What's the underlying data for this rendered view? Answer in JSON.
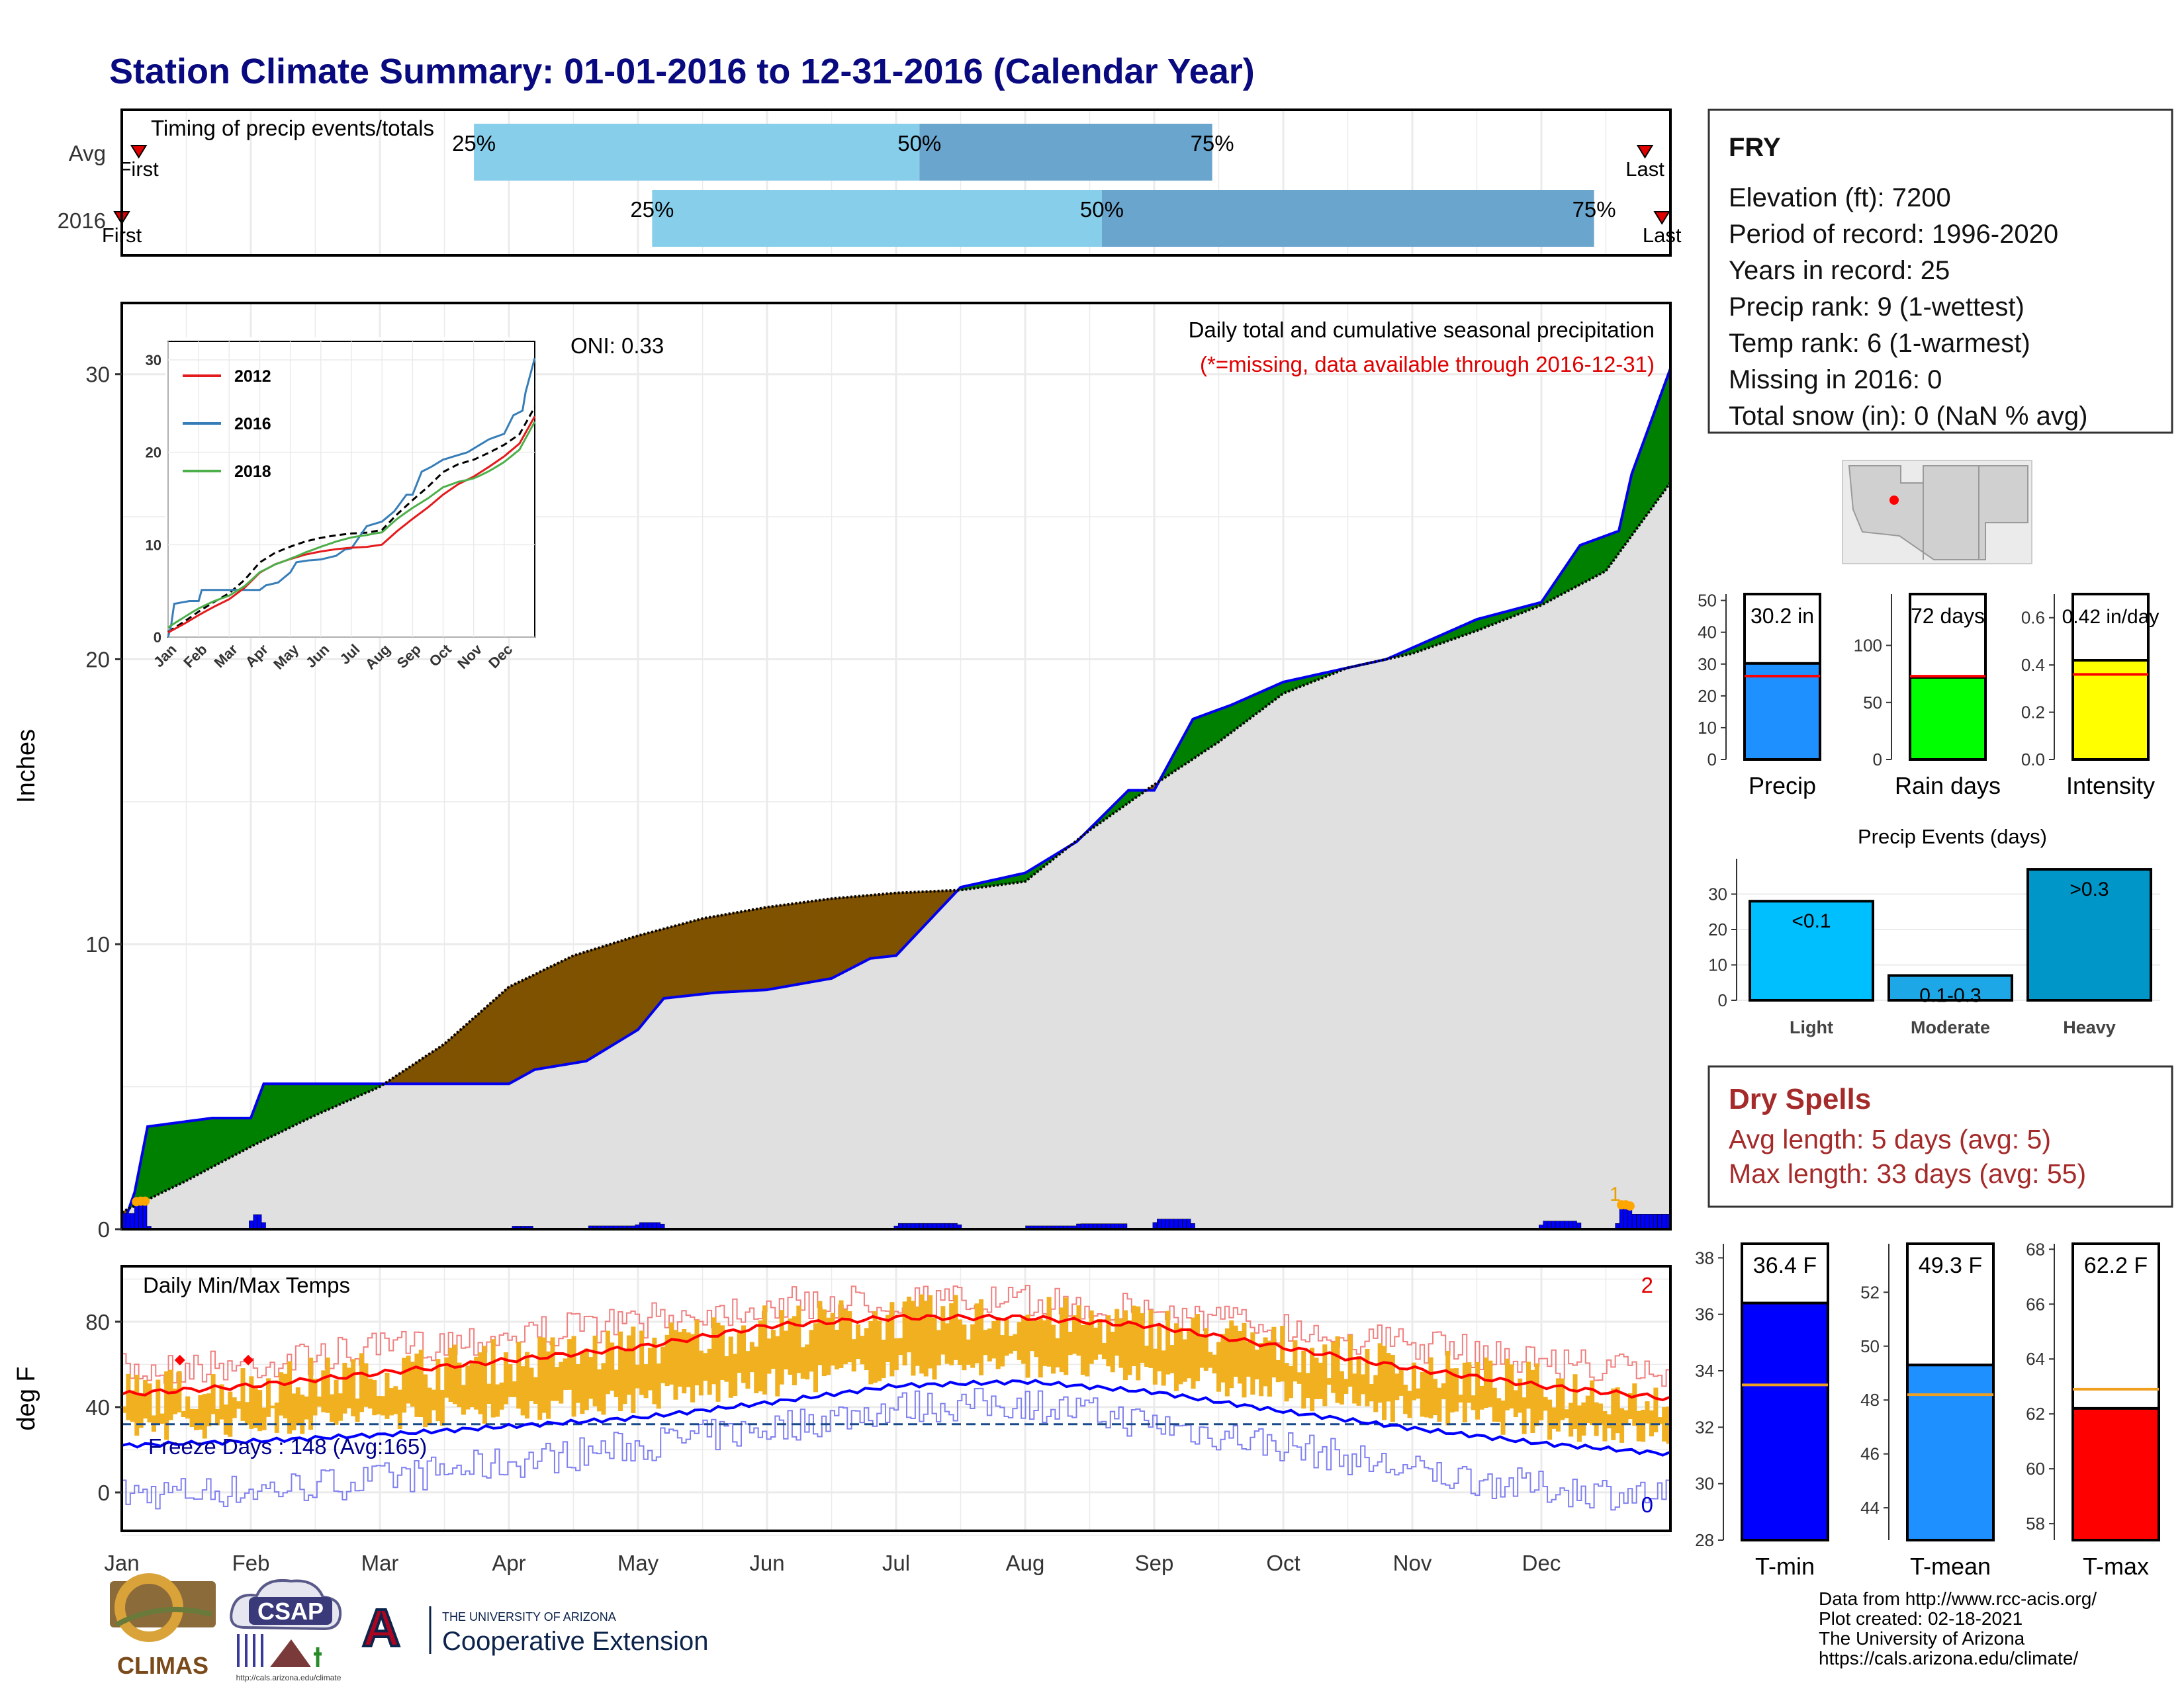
{
  "title": "Station Climate Summary: 01-01-2016 to 12-31-2016 (Calendar Year)",
  "timing_panel": {
    "label": "Timing of precip events/totals",
    "rows": [
      {
        "name": "Avg",
        "first_label": "First",
        "last_label": "Last",
        "first_day": 5,
        "p25_day": 84,
        "p50_day": 189,
        "p75_day": 258,
        "last_day": 360
      },
      {
        "name": "2016",
        "first_label": "First",
        "last_label": "Last",
        "first_day": 1,
        "p25_day": 126,
        "p50_day": 232,
        "p75_day": 348,
        "last_day": 364
      }
    ],
    "pct_labels": [
      "25%",
      "50%",
      "75%"
    ]
  },
  "precip_panel": {
    "ylabel": "Inches",
    "oni": "ONI: 0.33",
    "subtitle": "Daily total and cumulative seasonal precipitation",
    "missing_note": "(*=missing, data available through 2016-12-31)",
    "note_number": "1",
    "y_ticks": [
      "0",
      "10",
      "20",
      "30"
    ],
    "ylim": [
      0,
      32.5
    ]
  },
  "months": [
    "Jan",
    "Feb",
    "Mar",
    "Apr",
    "May",
    "Jun",
    "Jul",
    "Aug",
    "Sep",
    "Oct",
    "Nov",
    "Dec"
  ],
  "inset": {
    "y_ticks": [
      "0",
      "10",
      "20",
      "30"
    ],
    "legend": [
      {
        "name": "2012",
        "color": "#e41a1c"
      },
      {
        "name": "2016",
        "color": "#377eb8"
      },
      {
        "name": "2018",
        "color": "#4daf4a"
      }
    ]
  },
  "temp_panel": {
    "ylabel": "deg F",
    "label": "Daily Min/Max Temps",
    "freeze_text": "Freeze Days : 148 (Avg:165)",
    "max_count": "2",
    "min_count": "0",
    "y_ticks": [
      "0",
      "40",
      "80"
    ],
    "ylim": [
      -18,
      106
    ]
  },
  "station": {
    "name": "FRY",
    "lines": [
      "Elevation (ft): 7200",
      "Period of record: 1996-2020",
      "Years in record: 25",
      "Precip rank: 9 (1-wettest)",
      "Temp rank: 6 (1-warmest)",
      "Missing in 2016: 0",
      "Total snow (in): 0 (NaN % avg)"
    ]
  },
  "precip_bars": [
    {
      "label": "Precip",
      "value_label": "30.2 in",
      "value": 30.2,
      "avg": 26.2,
      "ylim": [
        0,
        52
      ],
      "ticks": [
        "0",
        "10",
        "20",
        "30",
        "40",
        "50"
      ],
      "color": "#1e90ff"
    },
    {
      "label": "Rain days",
      "value_label": "72 days",
      "value": 72,
      "avg": 73,
      "ylim": [
        0,
        145
      ],
      "ticks": [
        "0",
        "50",
        "100"
      ],
      "color": "#00ff00"
    },
    {
      "label": "Intensity",
      "value_label": "0.42 in/day",
      "value": 0.42,
      "avg": 0.36,
      "ylim": [
        0,
        0.7
      ],
      "ticks": [
        "0.0",
        "0.2",
        "0.4",
        "0.6"
      ],
      "color": "#ffff00"
    }
  ],
  "precip_events": {
    "title": "Precip Events (days)",
    "y_ticks": [
      "0",
      "10",
      "20",
      "30"
    ],
    "ylim": [
      0,
      40
    ],
    "bars": [
      {
        "category": "Light",
        "label": "<0.1",
        "value": 28,
        "color": "#00bfff"
      },
      {
        "category": "Moderate",
        "label": "0.1-0.3",
        "value": 7,
        "color": "#1ea7e6"
      },
      {
        "category": "Heavy",
        "label": ">0.3",
        "value": 37,
        "color": "#0096c8"
      }
    ]
  },
  "dry_spells": {
    "title": "Dry Spells",
    "avg_line": "Avg length: 5 days (avg: 5)",
    "max_line": "Max length: 33 days (avg: 55)"
  },
  "temp_bars": [
    {
      "label": "T-min",
      "value_label": "36.4 F",
      "value": 36.4,
      "avg": 33.5,
      "ylim": [
        28,
        38.5
      ],
      "ticks": [
        "28",
        "30",
        "32",
        "34",
        "36",
        "38"
      ],
      "color": "#0000ff"
    },
    {
      "label": "T-mean",
      "value_label": "49.3 F",
      "value": 49.3,
      "avg": 48.2,
      "ylim": [
        42.8,
        53.8
      ],
      "ticks": [
        "44",
        "46",
        "48",
        "50",
        "52"
      ],
      "color": "#1e90ff"
    },
    {
      "label": "T-max",
      "value_label": "62.2 F",
      "value": 62.2,
      "avg": 62.9,
      "ylim": [
        57.4,
        68.2
      ],
      "ticks": [
        "58",
        "60",
        "62",
        "64",
        "66",
        "68"
      ],
      "color": "#ff0000"
    }
  ],
  "footer": {
    "lines": [
      "Data from http://www.rcc-acis.org/",
      "Plot created: 02-18-2021",
      "The University of Arizona",
      "https://cals.arizona.edu/climate/"
    ],
    "logos": {
      "climas": "CLIMAS",
      "csap": "CSAP",
      "csap_url": "http://cals.arizona.edu/climate",
      "ua_top": "THE UNIVERSITY OF ARIZONA",
      "ua_name": "Cooperative Extension",
      "ua_letter": "A"
    }
  },
  "colors": {
    "title": "#0a0a80",
    "above_avg": "#008000",
    "below_avg": "#7f5200",
    "cum_fill": "#e0e0e0",
    "bar25": "#87ceeb",
    "bar50": "#6aa5cd",
    "orange": "#f0b020",
    "dry_spells": "#a52a2a"
  },
  "chart_data": [
    {
      "type": "area",
      "title": "Daily total and cumulative seasonal precipitation",
      "ylabel": "Inches",
      "ylim": [
        0,
        32.5
      ],
      "x_unit": "month",
      "series": [
        {
          "name": "2016 cumulative",
          "x": [
            1,
            1.1,
            1.2,
            1.7,
            2.0,
            2.1,
            3.0,
            3.4,
            4.0,
            4.2,
            4.6,
            5.0,
            5.2,
            5.6,
            6.0,
            6.5,
            6.8,
            7.0,
            7.5,
            8.0,
            8.4,
            8.8,
            9.0,
            9.3,
            9.6,
            10.0,
            10.4,
            10.8,
            11.0,
            11.5,
            12.0,
            12.3,
            12.6,
            12.7,
            13.0
          ],
          "values": [
            0.0,
            1.3,
            3.6,
            3.9,
            3.9,
            5.1,
            5.1,
            5.1,
            5.1,
            5.6,
            5.9,
            7.0,
            8.1,
            8.3,
            8.4,
            8.8,
            9.5,
            9.6,
            12.0,
            12.5,
            13.6,
            15.4,
            15.4,
            17.9,
            18.4,
            19.2,
            19.6,
            20.0,
            20.4,
            21.4,
            22.0,
            24.0,
            24.5,
            26.5,
            30.2
          ]
        },
        {
          "name": "Avg cumulative",
          "x": [
            1,
            1.5,
            2.0,
            2.5,
            3.0,
            3.5,
            4.0,
            4.5,
            5.0,
            5.5,
            6.0,
            6.5,
            7.0,
            7.5,
            8.0,
            8.5,
            9.0,
            9.5,
            10.0,
            10.5,
            11.0,
            11.5,
            12.0,
            12.5,
            13.0
          ],
          "values": [
            0.6,
            1.7,
            2.9,
            4.0,
            5.0,
            6.5,
            8.5,
            9.6,
            10.3,
            10.9,
            11.3,
            11.6,
            11.8,
            11.9,
            12.2,
            14.0,
            15.6,
            17.1,
            18.8,
            19.7,
            20.2,
            21.0,
            21.9,
            23.1,
            26.2
          ]
        }
      ]
    },
    {
      "type": "line",
      "title": "Daily Min/Max Temps",
      "ylabel": "deg F",
      "ylim": [
        -18,
        106
      ],
      "series": [
        {
          "name": "Avg max",
          "x": [
            1,
            2,
            3,
            4,
            5,
            6,
            7,
            8,
            9,
            10,
            11,
            12,
            13
          ],
          "values": [
            46,
            50,
            56,
            62,
            68,
            78,
            82,
            82,
            78,
            68,
            58,
            50,
            44
          ]
        },
        {
          "name": "Avg min",
          "x": [
            1,
            2,
            3,
            4,
            5,
            6,
            7,
            8,
            9,
            10,
            11,
            12,
            13
          ],
          "values": [
            22,
            24,
            27,
            31,
            35,
            42,
            50,
            52,
            47,
            38,
            30,
            23,
            18
          ]
        },
        {
          "name": "Record max",
          "x": [
            1,
            2,
            3,
            4,
            5,
            6,
            7,
            8,
            9,
            10,
            11,
            12,
            13
          ],
          "values": [
            65,
            68,
            75,
            82,
            88,
            96,
            98,
            97,
            93,
            85,
            77,
            70,
            63
          ]
        },
        {
          "name": "Record min",
          "x": [
            1,
            2,
            3,
            4,
            5,
            6,
            7,
            8,
            9,
            10,
            11,
            12,
            13
          ],
          "values": [
            -5,
            -3,
            2,
            10,
            18,
            26,
            36,
            38,
            28,
            18,
            6,
            -2,
            -6
          ]
        }
      ],
      "freeze_threshold": 32
    }
  ]
}
